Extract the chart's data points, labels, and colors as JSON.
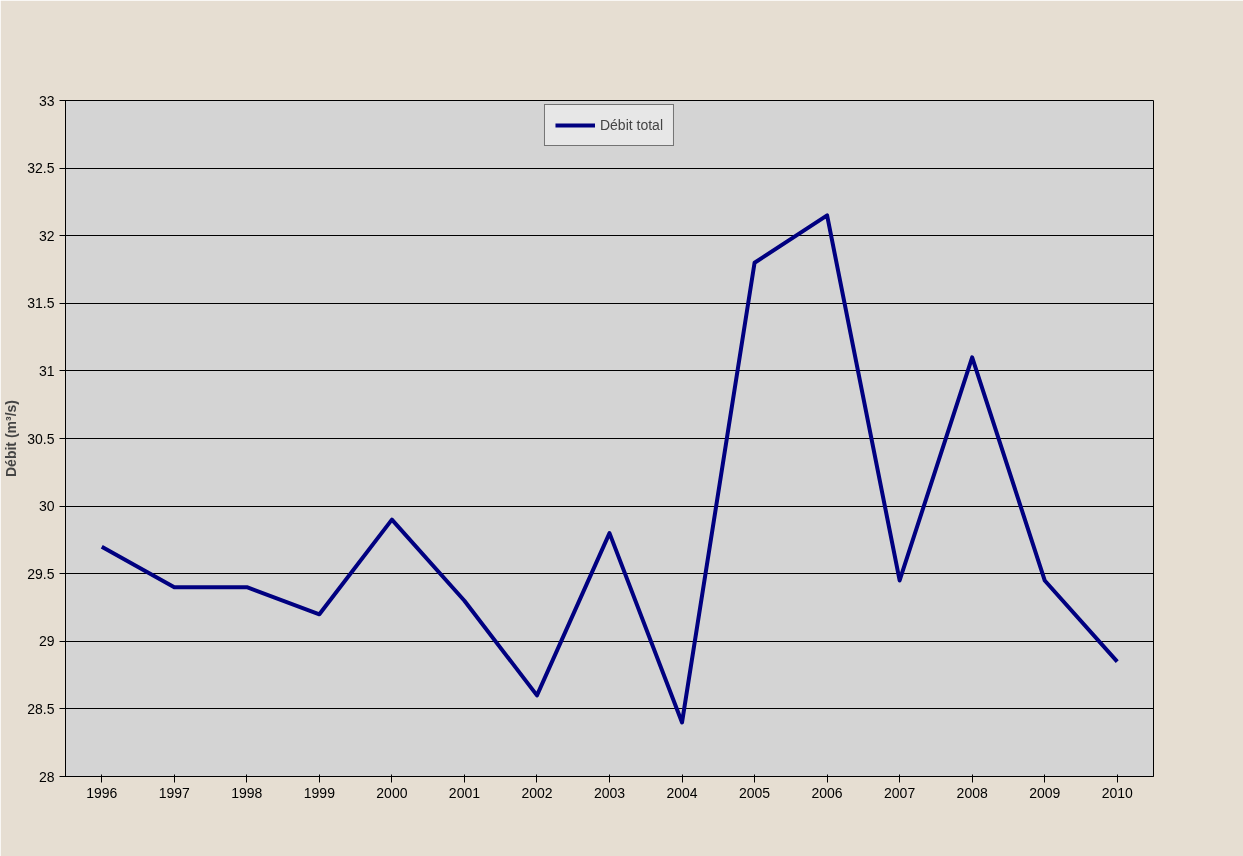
{
  "chart_data": {
    "type": "line",
    "ylabel": "Débit (m³/s)",
    "categories": [
      "1996",
      "1997",
      "1998",
      "1999",
      "2000",
      "2001",
      "2002",
      "2003",
      "2004",
      "2005",
      "2006",
      "2007",
      "2008",
      "2009",
      "2010"
    ],
    "series": [
      {
        "name": "Débit total",
        "color": "#000080",
        "values": [
          29.7,
          29.4,
          29.4,
          29.2,
          29.9,
          29.3,
          28.6,
          29.8,
          28.4,
          31.8,
          32.15,
          29.45,
          31.1,
          29.45,
          28.85
        ]
      }
    ],
    "ylim": [
      28,
      33
    ],
    "yticks": [
      28,
      28.5,
      29,
      29.5,
      30,
      30.5,
      31,
      31.5,
      32,
      32.5,
      33
    ],
    "grid": "y",
    "legend": "top",
    "marker": "none",
    "line_style": "solid"
  }
}
